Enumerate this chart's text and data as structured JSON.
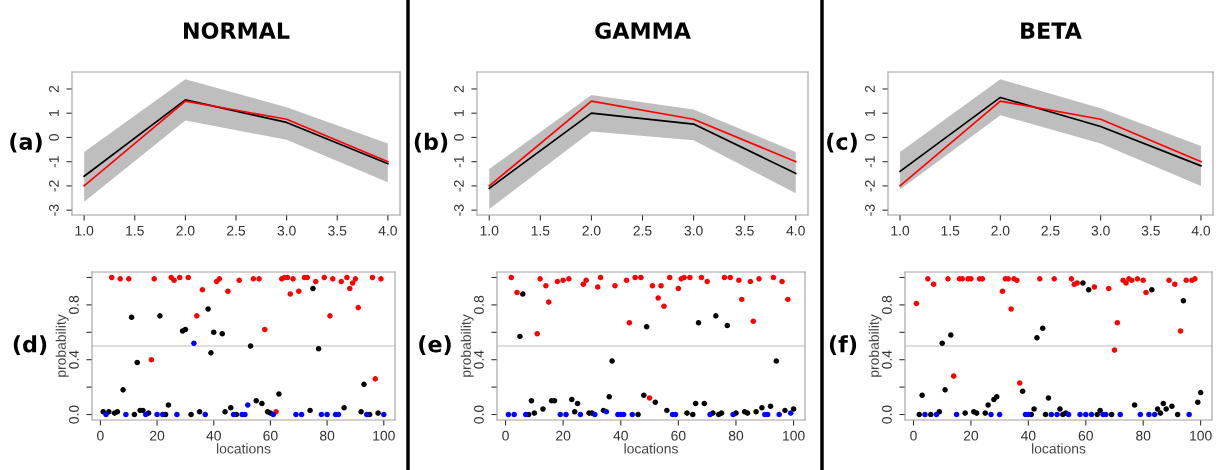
{
  "chart_data": [
    {
      "type": "line",
      "title": "NORMAL",
      "annotations": [
        "(a)"
      ],
      "x": [
        1,
        2,
        3,
        4
      ],
      "xlim": [
        0.88,
        4.12
      ],
      "ylim": [
        -3.2,
        2.7
      ],
      "xticks": [
        {
          "value": 1,
          "label": "1.0"
        },
        {
          "value": 1.5,
          "label": "1.5"
        },
        {
          "value": 2,
          "label": "2.0"
        },
        {
          "value": 2.5,
          "label": "2.5"
        },
        {
          "value": 3,
          "label": "3.0"
        },
        {
          "value": 3.5,
          "label": "3.5"
        },
        {
          "value": 4,
          "label": "4.0"
        }
      ],
      "yticks": [
        -3,
        -2,
        -1,
        0,
        1,
        2
      ],
      "series": [
        {
          "color": "#000000",
          "values": [
            -1.6,
            1.55,
            0.62,
            -1.08
          ],
          "lower": [
            -2.65,
            0.7,
            -0.1,
            -1.85
          ],
          "upper": [
            -0.6,
            2.4,
            1.25,
            -0.25
          ]
        },
        {
          "color": "#ff0000",
          "values": [
            -2.0,
            1.5,
            0.75,
            -1.0
          ]
        }
      ]
    },
    {
      "type": "line",
      "title": "GAMMA",
      "annotations": [
        "(b)"
      ],
      "x": [
        1,
        2,
        3,
        4
      ],
      "xlim": [
        0.88,
        4.12
      ],
      "ylim": [
        -3.2,
        2.7
      ],
      "xticks": [
        {
          "value": 1,
          "label": "1.0"
        },
        {
          "value": 1.5,
          "label": "1.5"
        },
        {
          "value": 2,
          "label": "2.0"
        },
        {
          "value": 2.5,
          "label": "2.5"
        },
        {
          "value": 3,
          "label": "3.0"
        },
        {
          "value": 3.5,
          "label": "3.5"
        },
        {
          "value": 4,
          "label": "4.0"
        }
      ],
      "yticks": [
        -3,
        -2,
        -1,
        0,
        1,
        2
      ],
      "series": [
        {
          "color": "#000000",
          "values": [
            -2.1,
            1.0,
            0.55,
            -1.48
          ],
          "lower": [
            -2.95,
            0.25,
            -0.12,
            -2.3
          ],
          "upper": [
            -1.3,
            1.75,
            1.15,
            -0.6
          ]
        },
        {
          "color": "#ff0000",
          "values": [
            -2.0,
            1.5,
            0.75,
            -1.0
          ]
        }
      ]
    },
    {
      "type": "line",
      "title": "BETA",
      "annotations": [
        "(c)"
      ],
      "x": [
        1,
        2,
        3,
        4
      ],
      "xlim": [
        0.88,
        4.12
      ],
      "ylim": [
        -3.2,
        2.7
      ],
      "xticks": [
        {
          "value": 1,
          "label": "1.0"
        },
        {
          "value": 1.5,
          "label": "1.5"
        },
        {
          "value": 2,
          "label": "2.0"
        },
        {
          "value": 2.5,
          "label": "2.5"
        },
        {
          "value": 3,
          "label": "3.0"
        },
        {
          "value": 3.5,
          "label": "3.5"
        },
        {
          "value": 4,
          "label": "4.0"
        }
      ],
      "yticks": [
        -3,
        -2,
        -1,
        0,
        1,
        2
      ],
      "series": [
        {
          "color": "#000000",
          "values": [
            -1.4,
            1.65,
            0.45,
            -1.17
          ],
          "lower": [
            -2.15,
            0.92,
            -0.25,
            -2.0
          ],
          "upper": [
            -0.6,
            2.4,
            1.2,
            -0.35
          ]
        },
        {
          "color": "#ff0000",
          "values": [
            -2.0,
            1.5,
            0.75,
            -1.0
          ]
        }
      ]
    },
    {
      "type": "scatter",
      "annotations": [
        "(d)"
      ],
      "xlabel": "locations",
      "ylabel": "probability",
      "marker": "circle",
      "xlim": [
        -2.96,
        103.96
      ],
      "ylim": [
        -0.04,
        1.04
      ],
      "xticks": [
        0,
        20,
        40,
        60,
        80,
        100
      ],
      "yticks": [
        {
          "value": 0,
          "label": "0.0"
        },
        {
          "value": 0.2,
          "label": null
        },
        {
          "value": 0.4,
          "label": "0.4"
        },
        {
          "value": 0.6,
          "label": null
        },
        {
          "value": 0.8,
          "label": "0.8"
        },
        {
          "value": 1.0,
          "label": null
        }
      ],
      "ref_lines": [
        {
          "axis": "y",
          "value": 0.5,
          "color": "#d3d3d3"
        }
      ],
      "series": [
        {
          "color": "#ff0000",
          "x": [
            4,
            7,
            10,
            18,
            19,
            25,
            26,
            28,
            31,
            34,
            36,
            41,
            42,
            45,
            49,
            54,
            56,
            58,
            62,
            64,
            65,
            66,
            67,
            68,
            70,
            72,
            73,
            76,
            79,
            81,
            82,
            85,
            87,
            88,
            89,
            90,
            91,
            96,
            97,
            99
          ],
          "values": [
            1.0,
            0.99,
            0.99,
            0.4,
            0.99,
            1.0,
            0.98,
            1.0,
            1.0,
            0.72,
            0.91,
            0.97,
            0.99,
            0.9,
            0.98,
            0.99,
            0.99,
            0.62,
            0.02,
            0.99,
            1.0,
            1.0,
            0.88,
            0.99,
            0.9,
            1.0,
            1.0,
            0.97,
            1.0,
            0.72,
            0.99,
            0.97,
            1.0,
            0.92,
            0.96,
            0.99,
            0.78,
            1.0,
            0.26,
            0.99
          ]
        },
        {
          "color": "#000000",
          "x": [
            1,
            3,
            5,
            6,
            8,
            11,
            12,
            13,
            14,
            15,
            17,
            21,
            23,
            24,
            29,
            30,
            32,
            35,
            38,
            39,
            40,
            43,
            44,
            46,
            48,
            53,
            55,
            57,
            59,
            60,
            63,
            74,
            75,
            77,
            86,
            92,
            93,
            95,
            98
          ],
          "values": [
            0.02,
            0.02,
            0.01,
            0.02,
            0.18,
            0.71,
            0.0,
            0.38,
            0.03,
            0.03,
            0.01,
            0.72,
            0.0,
            0.07,
            0.61,
            0.62,
            0.0,
            0.02,
            0.77,
            0.45,
            0.6,
            0.59,
            0.02,
            0.05,
            0.0,
            0.5,
            0.1,
            0.08,
            0.02,
            0.01,
            0.15,
            0.03,
            0.92,
            0.48,
            0.05,
            0.02,
            0.22,
            0.0,
            0.01
          ]
        },
        {
          "color": "#0000ff",
          "x": [
            2,
            9,
            16,
            20,
            22,
            27,
            33,
            37,
            47,
            50,
            51,
            52,
            61,
            69,
            71,
            78,
            80,
            83,
            84,
            94,
            100
          ],
          "values": [
            0,
            0,
            0,
            0,
            0,
            0,
            0.52,
            0,
            0,
            0,
            0,
            0.07,
            0,
            0,
            0,
            0,
            0,
            0,
            0,
            0,
            0
          ]
        }
      ]
    },
    {
      "type": "scatter",
      "annotations": [
        "(e)"
      ],
      "xlabel": "locations",
      "ylabel": "probability",
      "marker": "circle",
      "xlim": [
        -2.96,
        103.96
      ],
      "ylim": [
        -0.04,
        1.04
      ],
      "xticks": [
        0,
        20,
        40,
        60,
        80,
        100
      ],
      "yticks": [
        {
          "value": 0,
          "label": "0.0"
        },
        {
          "value": 0.2,
          "label": null
        },
        {
          "value": 0.4,
          "label": "0.4"
        },
        {
          "value": 0.6,
          "label": null
        },
        {
          "value": 0.8,
          "label": "0.8"
        },
        {
          "value": 1.0,
          "label": null
        }
      ],
      "ref_lines": [
        {
          "axis": "y",
          "value": 0.5,
          "color": "#d3d3d3"
        }
      ],
      "series": [
        {
          "color": "#ff0000",
          "x": [
            2,
            4,
            11,
            12,
            14,
            15,
            18,
            20,
            22,
            27,
            28,
            32,
            33,
            38,
            42,
            43,
            45,
            47,
            50,
            51,
            53,
            54,
            55,
            57,
            60,
            61,
            62,
            64,
            68,
            70,
            76,
            78,
            81,
            82,
            85,
            86,
            88,
            93,
            96,
            98
          ],
          "values": [
            1.0,
            0.89,
            0.59,
            0.99,
            0.94,
            0.82,
            0.97,
            0.98,
            0.99,
            0.95,
            0.98,
            0.93,
            1.0,
            0.94,
            0.98,
            0.67,
            1.0,
            1.0,
            0.12,
            0.94,
            0.85,
            0.94,
            0.79,
            1.0,
            0.92,
            0.99,
            1.0,
            1.0,
            1.0,
            0.97,
            1.0,
            1.0,
            0.98,
            0.84,
            0.97,
            0.68,
            0.99,
            1.0,
            0.97,
            0.84
          ]
        },
        {
          "color": "#000000",
          "x": [
            5,
            6,
            8,
            9,
            10,
            13,
            16,
            17,
            23,
            24,
            25,
            29,
            30,
            34,
            36,
            37,
            46,
            48,
            49,
            52,
            56,
            63,
            65,
            66,
            67,
            69,
            72,
            73,
            74,
            75,
            77,
            80,
            83,
            84,
            87,
            89,
            92,
            94,
            97,
            100
          ],
          "values": [
            0.57,
            0.88,
            0.0,
            0.1,
            0.01,
            0.04,
            0.1,
            0.1,
            0.11,
            0.02,
            0.08,
            0.01,
            0.01,
            0.03,
            0.13,
            0.39,
            0.0,
            0.14,
            0.64,
            0.09,
            0.03,
            0.01,
            0.0,
            0.08,
            0.67,
            0.08,
            0.01,
            0.72,
            0.0,
            0.01,
            0.65,
            0.01,
            0.02,
            0.01,
            0.02,
            0.05,
            0.06,
            0.39,
            0.03,
            0.04
          ]
        },
        {
          "color": "#0000ff",
          "x": [
            1,
            3,
            7,
            19,
            21,
            26,
            31,
            35,
            39,
            40,
            41,
            44,
            58,
            59,
            71,
            79,
            90,
            91,
            95,
            99
          ],
          "values": [
            0,
            0,
            0,
            0,
            0,
            0,
            0,
            0.02,
            0,
            0,
            0,
            0,
            0,
            0,
            0,
            0,
            0,
            0,
            0,
            0.01
          ]
        }
      ]
    },
    {
      "type": "scatter",
      "annotations": [
        "(f)"
      ],
      "xlabel": "locations",
      "ylabel": "probability",
      "marker": "circle",
      "xlim": [
        -2.96,
        103.96
      ],
      "ylim": [
        -0.04,
        1.04
      ],
      "xticks": [
        0,
        20,
        40,
        60,
        80,
        100
      ],
      "yticks": [
        {
          "value": 0,
          "label": "0.0"
        },
        {
          "value": 0.2,
          "label": null
        },
        {
          "value": 0.4,
          "label": "0.4"
        },
        {
          "value": 0.6,
          "label": null
        },
        {
          "value": 0.8,
          "label": "0.8"
        },
        {
          "value": 1.0,
          "label": null
        }
      ],
      "ref_lines": [
        {
          "axis": "y",
          "value": 0.5,
          "color": "#d3d3d3"
        }
      ],
      "series": [
        {
          "color": "#ff0000",
          "x": [
            1,
            5,
            7,
            12,
            14,
            16,
            17,
            19,
            20,
            23,
            24,
            31,
            32,
            33,
            34,
            35,
            36,
            37,
            44,
            49,
            55,
            56,
            57,
            63,
            68,
            70,
            71,
            73,
            74,
            75,
            76,
            78,
            80,
            81,
            89,
            91,
            93,
            95,
            97,
            98
          ],
          "values": [
            0.81,
            0.99,
            0.95,
            0.99,
            0.28,
            0.99,
            0.99,
            0.99,
            0.99,
            0.99,
            0.99,
            0.9,
            0.99,
            0.99,
            0.77,
            0.99,
            0.98,
            0.23,
            0.99,
            0.99,
            0.99,
            0.95,
            0.96,
            0.93,
            0.92,
            0.47,
            0.67,
            0.98,
            0.96,
            0.99,
            0.98,
            0.99,
            0.98,
            0.89,
            0.98,
            0.95,
            0.61,
            0.98,
            0.98,
            0.99
          ]
        },
        {
          "color": "#000000",
          "x": [
            2,
            3,
            6,
            9,
            10,
            11,
            13,
            18,
            21,
            22,
            25,
            26,
            28,
            29,
            38,
            41,
            42,
            43,
            45,
            46,
            47,
            51,
            52,
            53,
            59,
            61,
            64,
            65,
            69,
            77,
            83,
            85,
            86,
            87,
            88,
            90,
            92,
            94,
            99,
            100
          ],
          "values": [
            0,
            0.14,
            0,
            0.02,
            0.52,
            0.18,
            0.58,
            0.01,
            0.02,
            0.01,
            0.01,
            0.07,
            0.11,
            0.13,
            0.17,
            0,
            0.04,
            0.56,
            0.63,
            0,
            0.12,
            0.04,
            0,
            0.01,
            0.96,
            0.91,
            0,
            0.03,
            0,
            0.07,
            0.91,
            0.04,
            0.01,
            0.08,
            0.04,
            0.06,
            0,
            0.83,
            0.09,
            0.16
          ]
        },
        {
          "color": "#0000ff",
          "x": [
            4,
            8,
            15,
            27,
            30,
            39,
            40,
            48,
            50,
            54,
            58,
            60,
            62,
            66,
            67,
            72,
            79,
            82,
            84,
            96
          ],
          "values": [
            0,
            0,
            0,
            0,
            0,
            0,
            0,
            0,
            0,
            0,
            0,
            0,
            0,
            0,
            0,
            0,
            0,
            0,
            0,
            0
          ]
        }
      ]
    }
  ]
}
